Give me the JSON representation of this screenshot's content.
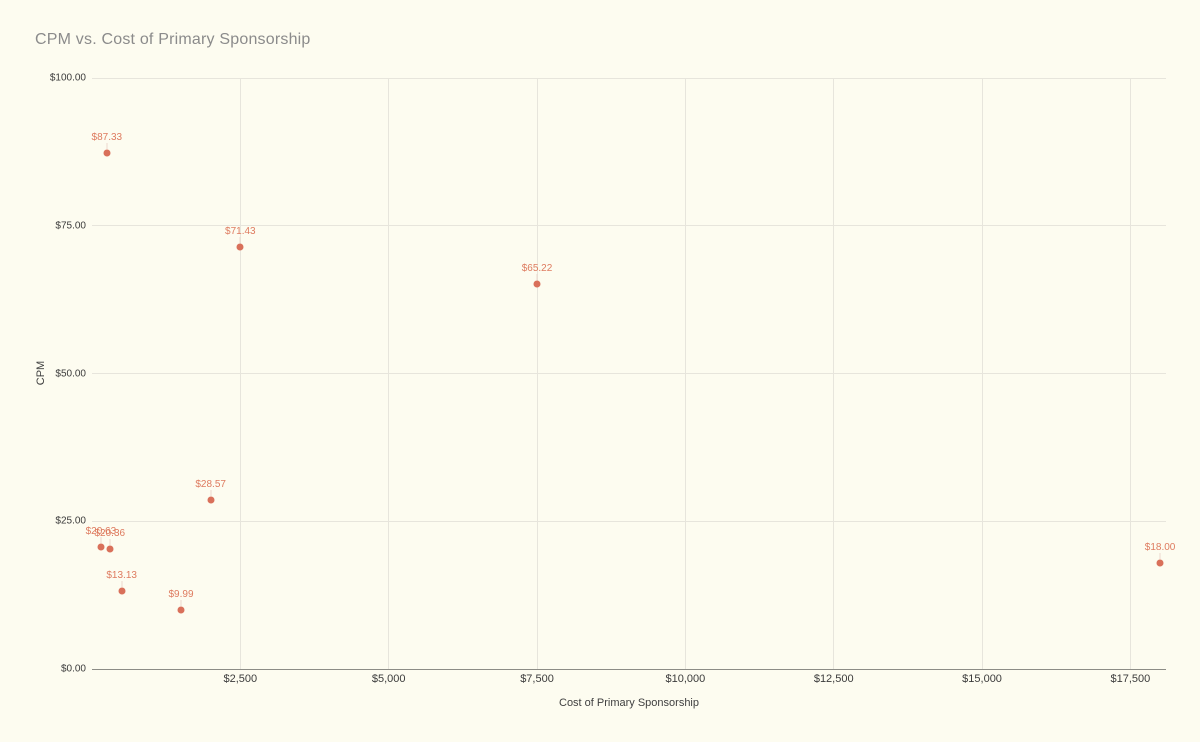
{
  "window": {
    "background": "#FDFCF0"
  },
  "chart_data": {
    "type": "scatter",
    "title": "CPM vs. Cost of Primary Sponsorship",
    "xlabel": "Cost of Primary Sponsorship",
    "ylabel": "CPM",
    "xlim": [
      0,
      18100
    ],
    "ylim": [
      0,
      100
    ],
    "grid": true,
    "legend": "none",
    "x_ticks": [
      {
        "value": 2500,
        "label": "$2,500"
      },
      {
        "value": 5000,
        "label": "$5,000"
      },
      {
        "value": 7500,
        "label": "$7,500"
      },
      {
        "value": 10000,
        "label": "$10,000"
      },
      {
        "value": 12500,
        "label": "$12,500"
      },
      {
        "value": 15000,
        "label": "$15,000"
      },
      {
        "value": 17500,
        "label": "$17,500"
      }
    ],
    "y_ticks": [
      {
        "value": 0,
        "label": "$0.00"
      },
      {
        "value": 25,
        "label": "$25.00"
      },
      {
        "value": 50,
        "label": "$50.00"
      },
      {
        "value": 75,
        "label": "$75.00"
      },
      {
        "value": 100,
        "label": "$100.00"
      }
    ],
    "points": [
      {
        "x": 250,
        "y": 87.33,
        "label": "$87.33"
      },
      {
        "x": 2500,
        "y": 71.43,
        "label": "$71.43"
      },
      {
        "x": 7500,
        "y": 65.22,
        "label": "$65.22"
      },
      {
        "x": 2000,
        "y": 28.57,
        "label": "$28.57"
      },
      {
        "x": 300,
        "y": 20.36,
        "label": "$20.36"
      },
      {
        "x": 150,
        "y": 20.63,
        "label": "$20.63"
      },
      {
        "x": 500,
        "y": 13.13,
        "label": "$13.13"
      },
      {
        "x": 1500,
        "y": 9.99,
        "label": "$9.99"
      },
      {
        "x": 18000,
        "y": 18.0,
        "label": "$18.00"
      }
    ],
    "colors": {
      "background": "#FDFCF0",
      "point": "#D9705A",
      "point_label": "#DE7B5F",
      "leader_line": "#EDD9CE",
      "gridline": "#E7E5DC",
      "axis_baseline": "#8C8C86",
      "title": "#8B8B8B",
      "tick_label": "#3B3B3B",
      "axis_title": "#3F3F3F"
    }
  }
}
